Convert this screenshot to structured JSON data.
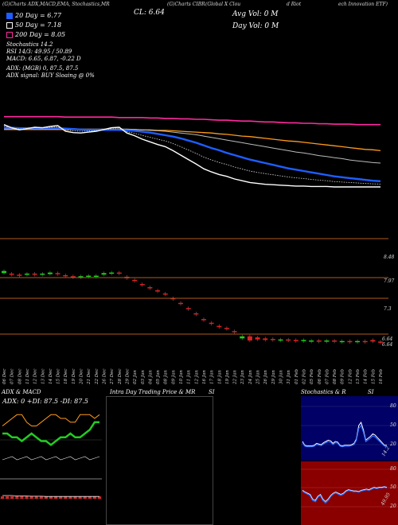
{
  "header": {
    "left": "(G)Charts ADX,MACD,EMA, Stochastics,MR ",
    "indicators": "SI,Stochastics,MR",
    "close_label": "CL: 6.64",
    "source": "(G)Charts CIBR",
    "name_part1": "(Global X Clou",
    "name_part2": "d Riot",
    "name_part3": "ech Innovation ETF)",
    "avg_vol": "Avg Vol: 0   M",
    "day_vol": "Day Vol: 0   M"
  },
  "legend": {
    "items": [
      {
        "label": "20 Day = 6.77",
        "color": "#1e5eff"
      },
      {
        "label": "50 Day = 7.18",
        "color": "#ffffff"
      },
      {
        "label": "200 Day = 8.05",
        "color": "#ff2aa0"
      }
    ],
    "stoch_line": "Stochastics 14.2",
    "rsi_line": "RSI 14/3: 49.95 / 50.89",
    "macd_line": "MACD: 6.65, 6.87, -0.22  D",
    "adx_line": "ADX:                     (MGB) 0, 87.5,  87.5",
    "signal_line": "ADX  signal:                      BUY Sloaing @ 0%"
  },
  "price_axis": [
    "8.48",
    "7.97",
    "7.3",
    "6.64",
    "6.64"
  ],
  "chart_data": {
    "type": "line",
    "title": "",
    "dates": [
      "06 Dec",
      "07 Dec",
      "08 Dec",
      "11 Dec",
      "12 Dec",
      "13 Dec",
      "14 Dec",
      "15 Dec",
      "18 Dec",
      "19 Dec",
      "20 Dec",
      "21 Dec",
      "22 Dec",
      "26 Dec",
      "27 Dec",
      "28 Dec",
      "29 Dec",
      "02 Jan",
      "03 Jan",
      "04 Jan",
      "05 Jan",
      "08 Jan",
      "09 Jan",
      "10 Jan",
      "11 Jan",
      "12 Jan",
      "16 Jan",
      "17 Jan",
      "18 Jan",
      "19 Jan",
      "22 Jan",
      "23 Jan",
      "24 Jan",
      "25 Jan",
      "26 Jan",
      "29 Jan",
      "30 Jan",
      "31 Jan",
      "01 Feb",
      "02 Feb",
      "05 Feb",
      "06 Feb",
      "07 Feb",
      "08 Feb",
      "09 Feb",
      "12 Feb",
      "13 Feb",
      "14 Feb",
      "15 Feb",
      "16 Feb"
    ],
    "close": [
      8.05,
      7.98,
      7.93,
      7.96,
      7.99,
      7.98,
      8.01,
      8.03,
      7.9,
      7.87,
      7.86,
      7.88,
      7.9,
      7.94,
      7.98,
      7.99,
      7.86,
      7.8,
      7.72,
      7.66,
      7.6,
      7.55,
      7.46,
      7.36,
      7.26,
      7.16,
      7.05,
      6.98,
      6.92,
      6.88,
      6.82,
      6.78,
      6.74,
      6.72,
      6.7,
      6.69,
      6.68,
      6.67,
      6.66,
      6.66,
      6.65,
      6.65,
      6.65,
      6.64,
      6.64,
      6.64,
      6.64,
      6.64,
      6.64,
      6.64
    ],
    "ema20": [
      7.98,
      7.98,
      7.97,
      7.97,
      7.97,
      7.97,
      7.97,
      7.97,
      7.96,
      7.95,
      7.94,
      7.93,
      7.93,
      7.93,
      7.93,
      7.93,
      7.92,
      7.91,
      7.89,
      7.87,
      7.84,
      7.81,
      7.78,
      7.74,
      7.69,
      7.64,
      7.58,
      7.52,
      7.47,
      7.41,
      7.36,
      7.31,
      7.26,
      7.22,
      7.18,
      7.14,
      7.1,
      7.06,
      7.03,
      7.0,
      6.97,
      6.94,
      6.91,
      6.88,
      6.86,
      6.84,
      6.82,
      6.8,
      6.78,
      6.77
    ],
    "ema50": [
      7.96,
      7.96,
      7.96,
      7.96,
      7.96,
      7.96,
      7.96,
      7.96,
      7.96,
      7.96,
      7.95,
      7.95,
      7.95,
      7.95,
      7.95,
      7.95,
      7.95,
      7.94,
      7.93,
      7.92,
      7.91,
      7.9,
      7.88,
      7.86,
      7.84,
      7.82,
      7.79,
      7.76,
      7.73,
      7.7,
      7.67,
      7.64,
      7.61,
      7.58,
      7.55,
      7.52,
      7.49,
      7.46,
      7.43,
      7.41,
      7.38,
      7.35,
      7.33,
      7.3,
      7.28,
      7.25,
      7.23,
      7.21,
      7.19,
      7.18
    ],
    "ema100": [
      7.94,
      7.94,
      7.94,
      7.94,
      7.94,
      7.94,
      7.94,
      7.94,
      7.94,
      7.94,
      7.94,
      7.94,
      7.94,
      7.94,
      7.94,
      7.94,
      7.94,
      7.94,
      7.93,
      7.93,
      7.92,
      7.92,
      7.91,
      7.9,
      7.89,
      7.88,
      7.87,
      7.86,
      7.84,
      7.83,
      7.81,
      7.79,
      7.78,
      7.76,
      7.74,
      7.72,
      7.7,
      7.68,
      7.67,
      7.65,
      7.63,
      7.61,
      7.59,
      7.57,
      7.55,
      7.53,
      7.51,
      7.49,
      7.48,
      7.46
    ],
    "ema200": [
      8.23,
      8.23,
      8.23,
      8.23,
      8.23,
      8.23,
      8.23,
      8.23,
      8.22,
      8.22,
      8.22,
      8.22,
      8.22,
      8.22,
      8.22,
      8.21,
      8.21,
      8.21,
      8.21,
      8.2,
      8.2,
      8.19,
      8.19,
      8.18,
      8.18,
      8.17,
      8.17,
      8.16,
      8.15,
      8.15,
      8.14,
      8.13,
      8.13,
      8.12,
      8.11,
      8.11,
      8.1,
      8.09,
      8.09,
      8.08,
      8.08,
      8.07,
      8.07,
      8.06,
      8.06,
      8.06,
      8.05,
      8.05,
      8.05,
      8.05
    ],
    "candles": [
      {
        "o": 7.99,
        "c": 7.95,
        "up": true
      },
      {
        "o": 7.94,
        "c": 7.92,
        "up": false
      },
      {
        "o": 7.92,
        "c": 7.91,
        "up": false
      },
      {
        "o": 7.92,
        "c": 7.94,
        "up": true
      },
      {
        "o": 7.94,
        "c": 7.93,
        "up": false
      },
      {
        "o": 7.93,
        "c": 7.94,
        "up": true
      },
      {
        "o": 7.93,
        "c": 7.96,
        "up": true
      },
      {
        "o": 7.95,
        "c": 7.93,
        "up": false
      },
      {
        "o": 7.91,
        "c": 7.89,
        "up": false
      },
      {
        "o": 7.89,
        "c": 7.88,
        "up": false
      },
      {
        "o": 7.88,
        "c": 7.89,
        "up": true
      },
      {
        "o": 7.89,
        "c": 7.9,
        "up": true
      },
      {
        "o": 7.9,
        "c": 7.9,
        "up": true
      },
      {
        "o": 7.92,
        "c": 7.95,
        "up": true
      },
      {
        "o": 7.95,
        "c": 7.96,
        "up": true
      },
      {
        "o": 7.96,
        "c": 7.95,
        "up": false
      },
      {
        "o": 7.88,
        "c": 7.85,
        "up": false
      },
      {
        "o": 7.82,
        "c": 7.8,
        "up": false
      },
      {
        "o": 7.74,
        "c": 7.72,
        "up": false
      },
      {
        "o": 7.68,
        "c": 7.66,
        "up": false
      },
      {
        "o": 7.62,
        "c": 7.6,
        "up": false
      },
      {
        "o": 7.56,
        "c": 7.55,
        "up": false
      },
      {
        "o": 7.47,
        "c": 7.46,
        "up": false
      },
      {
        "o": 7.38,
        "c": 7.36,
        "up": false
      },
      {
        "o": 7.28,
        "c": 7.26,
        "up": false
      },
      {
        "o": 7.18,
        "c": 7.16,
        "up": false
      },
      {
        "o": 7.07,
        "c": 7.05,
        "up": false
      },
      {
        "o": 7.0,
        "c": 6.98,
        "up": false
      },
      {
        "o": 6.94,
        "c": 6.92,
        "up": false
      },
      {
        "o": 6.9,
        "c": 6.88,
        "up": false
      },
      {
        "o": 6.84,
        "c": 6.82,
        "up": false
      },
      {
        "o": 6.7,
        "c": 6.74,
        "up": true
      },
      {
        "o": 6.74,
        "c": 6.66,
        "up": false
      },
      {
        "o": 6.72,
        "c": 6.68,
        "up": false
      },
      {
        "o": 6.7,
        "c": 6.67,
        "up": false
      },
      {
        "o": 6.69,
        "c": 6.67,
        "up": false
      },
      {
        "o": 6.67,
        "c": 6.68,
        "up": true
      },
      {
        "o": 6.68,
        "c": 6.67,
        "up": false
      },
      {
        "o": 6.67,
        "c": 6.66,
        "up": false
      },
      {
        "o": 6.66,
        "c": 6.67,
        "up": true
      },
      {
        "o": 6.65,
        "c": 6.66,
        "up": true
      },
      {
        "o": 6.66,
        "c": 6.65,
        "up": false
      },
      {
        "o": 6.65,
        "c": 6.66,
        "up": true
      },
      {
        "o": 6.66,
        "c": 6.65,
        "up": false
      },
      {
        "o": 6.65,
        "c": 6.65,
        "up": true
      },
      {
        "o": 6.65,
        "c": 6.64,
        "up": false
      },
      {
        "o": 6.64,
        "c": 6.65,
        "up": true
      },
      {
        "o": 6.65,
        "c": 6.64,
        "up": false
      },
      {
        "o": 6.64,
        "c": 6.67,
        "up": false
      },
      {
        "o": 6.64,
        "c": 6.64,
        "up": false
      }
    ],
    "ylim": [
      6.55,
      8.6
    ],
    "grid": false
  },
  "panels": {
    "adx_title": "ADX  & MACD",
    "adx_values": "ADX: 0   +DI: 87.5   -DI: 87.5",
    "intraday_title": "Intra  Day Trading Price  & MR",
    "intraday_si": "SI",
    "stoch_title": "Stochastics & R",
    "stoch_si": "SI",
    "stoch_axis": [
      "80",
      "50",
      "20"
    ],
    "stoch_value": "14.2",
    "rsi_axis": [
      "80",
      "50",
      "20"
    ],
    "rsi_value": "49.95",
    "adx_series": [
      60,
      60,
      55,
      55,
      50,
      55,
      60,
      55,
      50,
      50,
      45,
      50,
      55,
      55,
      60,
      55,
      55,
      60,
      65,
      75,
      75
    ],
    "di_plus": [
      70,
      75,
      80,
      85,
      85,
      75,
      70,
      70,
      75,
      80,
      85,
      85,
      80,
      80,
      75,
      75,
      85,
      85,
      85,
      80,
      85
    ],
    "macd": [
      6.9,
      6.9,
      6.9,
      6.88,
      6.88,
      6.88,
      6.87,
      6.87,
      6.87,
      6.86,
      6.86,
      6.86,
      6.86,
      6.86,
      6.86,
      6.86,
      6.86,
      6.86,
      6.86,
      6.86,
      6.86
    ],
    "stoch_series": [
      20,
      14,
      13,
      13,
      13,
      14,
      17,
      16,
      15,
      18,
      20,
      22,
      21,
      17,
      20,
      19,
      14,
      13,
      14,
      14,
      14,
      15,
      17,
      24,
      45,
      50,
      38,
      22,
      25,
      28,
      32,
      30,
      26,
      22,
      18,
      14,
      14
    ],
    "rsi_series": [
      45,
      42,
      40,
      38,
      30,
      28,
      35,
      38,
      30,
      26,
      30,
      36,
      40,
      42,
      40,
      38,
      40,
      44,
      46,
      45,
      44,
      44,
      43,
      45,
      46,
      47,
      46,
      48,
      50,
      49,
      50,
      50,
      51,
      50
    ],
    "colors": {
      "ema20": "#1e5eff",
      "ema50": "#ffffff",
      "ema100": "#bbbbbb",
      "ema200": "#ff2aa0",
      "orange": "#ff9a1a",
      "up": "#16d416",
      "down": "#e02020",
      "adx": "#22cc22",
      "rsi_bg": "#8a0000",
      "stoch_bg": "#000066"
    }
  }
}
